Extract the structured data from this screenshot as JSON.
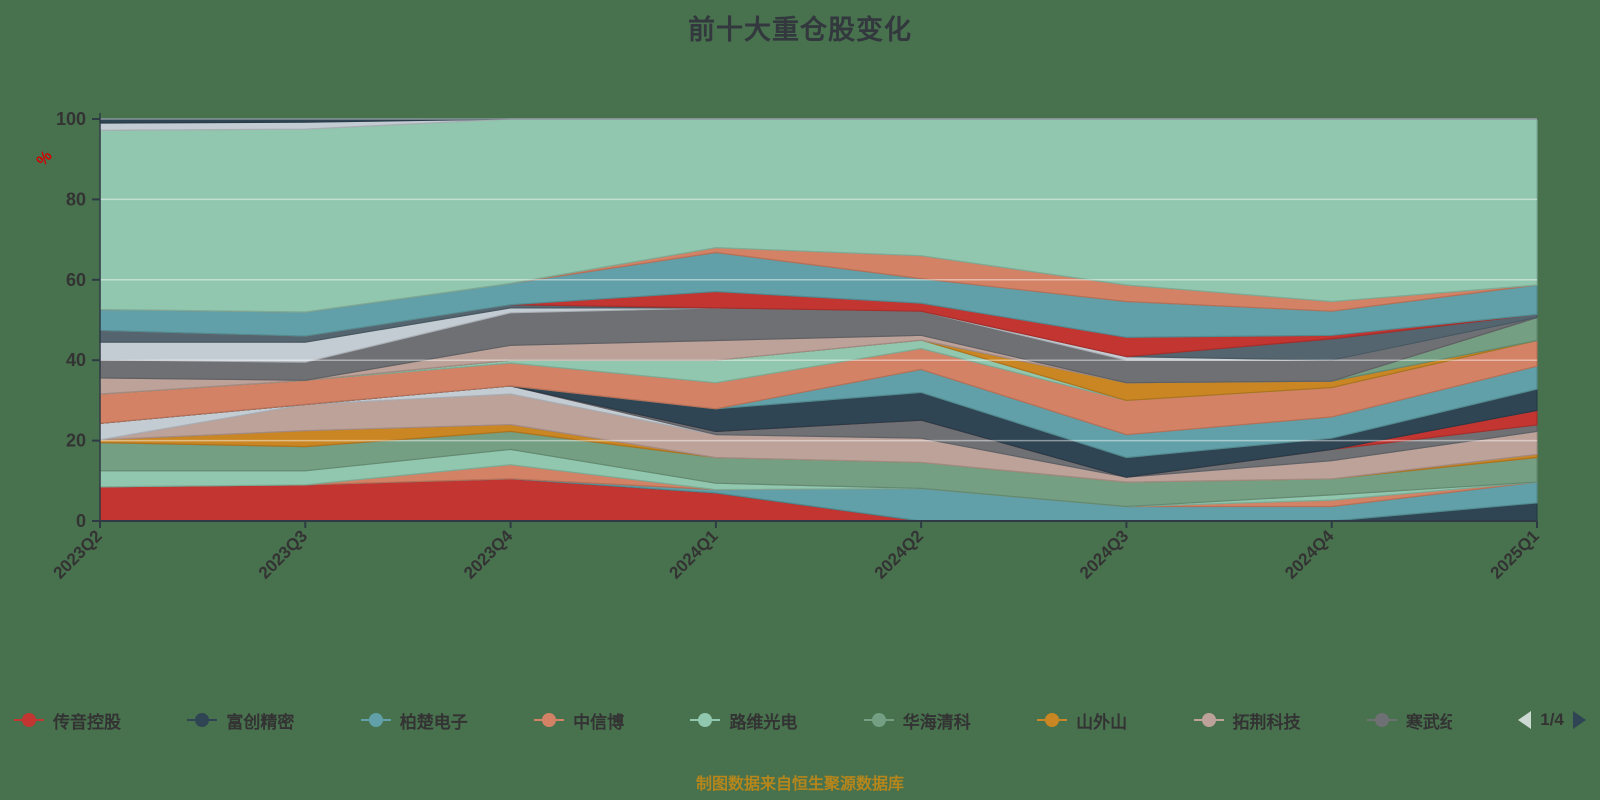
{
  "title": "前十大重仓股变化",
  "y_axis_unit": "%",
  "caption": "制图数据来自恒生聚源数据库",
  "legend": {
    "items": [
      {
        "label": "传音控股",
        "color": "#c23531"
      },
      {
        "label": "富创精密",
        "color": "#2f4554"
      },
      {
        "label": "柏楚电子",
        "color": "#61a0a8"
      },
      {
        "label": "中信博",
        "color": "#d48265"
      },
      {
        "label": "路维光电",
        "color": "#91c7ae"
      },
      {
        "label": "华海清科",
        "color": "#749f83"
      },
      {
        "label": "山外山",
        "color": "#ca8622"
      },
      {
        "label": "拓荆科技",
        "color": "#bda29a"
      },
      {
        "label": "寒武纪",
        "color": "#6e7074",
        "truncated": true
      }
    ],
    "pager": {
      "prev": "left-arrow",
      "text": "1/4",
      "next": "right-arrow"
    }
  },
  "chart_data": {
    "type": "area",
    "stacked": true,
    "grid": true,
    "legend_position": "bottom",
    "categories": [
      "2023Q2",
      "2023Q3",
      "2023Q4",
      "2024Q1",
      "2024Q2",
      "2024Q3",
      "2024Q4",
      "2025Q1"
    ],
    "yticks": [
      0,
      20,
      40,
      60,
      80,
      100
    ],
    "ylim": [
      0,
      100
    ],
    "xlabel": "",
    "ylabel": "%",
    "series": [
      {
        "name": "传音控股",
        "color": "#c23531",
        "values": [
          8.5,
          9,
          10.5,
          7,
          0,
          0,
          0,
          0
        ]
      },
      {
        "name": "",
        "color": "#2f4554",
        "values": [
          0,
          0,
          0,
          0,
          0,
          0,
          0,
          4.5
        ]
      },
      {
        "name": "柏楚电子",
        "color": "#61a0a8",
        "values": [
          0,
          0,
          0,
          0.8,
          8.1,
          3.6,
          3.6,
          5.2
        ]
      },
      {
        "name": "",
        "color": "#d48265",
        "values": [
          0,
          0,
          3.5,
          0,
          0,
          0,
          1.6,
          0
        ]
      },
      {
        "name": "",
        "color": "#91c7ae",
        "values": [
          4,
          3.5,
          3.8,
          1.6,
          0,
          0,
          1.3,
          0
        ]
      },
      {
        "name": "华海清科",
        "color": "#749f83",
        "values": [
          7,
          6,
          4.5,
          6.4,
          6.5,
          6.1,
          4,
          6.1
        ]
      },
      {
        "name": "山外山",
        "color": "#ca8622",
        "values": [
          0.7,
          4,
          1.7,
          0,
          0,
          0,
          0,
          0.8
        ]
      },
      {
        "name": "拓荆科技",
        "color": "#bda29a",
        "values": [
          0,
          6.5,
          7.6,
          5.7,
          6,
          1.2,
          4.5,
          5.7
        ]
      },
      {
        "name": "",
        "color": "#c4ccd3",
        "values": [
          4.1,
          0,
          2,
          0,
          0,
          0,
          0,
          0
        ]
      },
      {
        "name": "",
        "color": "#6e7074",
        "values": [
          0,
          0,
          0,
          0.8,
          4.5,
          0,
          2.8,
          1.6
        ]
      },
      {
        "name": "",
        "color": "#c23531",
        "values": [
          0,
          0,
          0,
          0,
          0,
          0,
          0,
          3.6
        ]
      },
      {
        "name": "富创精密",
        "color": "#2f4554",
        "values": [
          0,
          0,
          0,
          5.6,
          6.9,
          4.9,
          2.8,
          5.3
        ]
      },
      {
        "name": "",
        "color": "#61a0a8",
        "values": [
          0,
          0,
          0,
          0,
          5.7,
          5.7,
          5.3,
          5.7
        ]
      },
      {
        "name": "中信博",
        "color": "#d48265",
        "values": [
          7.3,
          6,
          5.7,
          6.5,
          5.2,
          8.5,
          7.3,
          6.4
        ]
      },
      {
        "name": "",
        "color": "#91c7ae",
        "values": [
          0,
          0,
          0.7,
          5.6,
          2.1,
          0,
          0,
          0
        ]
      },
      {
        "name": "",
        "color": "#ca8622",
        "values": [
          0,
          0,
          0,
          0,
          0,
          4.4,
          1.6,
          0
        ]
      },
      {
        "name": "",
        "color": "#749f83",
        "values": [
          0,
          0,
          0,
          0,
          0,
          0,
          0,
          5.7
        ]
      },
      {
        "name": "",
        "color": "#bda29a",
        "values": [
          4,
          0,
          3.7,
          4.9,
          1.2,
          0,
          0,
          0
        ]
      },
      {
        "name": "寒武纪",
        "color": "#6e7074",
        "values": [
          4.5,
          4.5,
          8.1,
          8.1,
          6,
          5.6,
          5.2,
          0
        ]
      },
      {
        "name": "",
        "color": "#c4ccd3",
        "values": [
          4.4,
          5,
          1.2,
          0,
          0,
          0.9,
          0,
          0
        ]
      },
      {
        "name": "",
        "color": "#546570",
        "values": [
          2.9,
          1.5,
          0.8,
          0,
          0,
          0,
          5.3,
          0.8
        ]
      },
      {
        "name": "",
        "color": "#c23531",
        "values": [
          0,
          0,
          0,
          4.1,
          2,
          4.8,
          0.9,
          0
        ]
      },
      {
        "name": "",
        "color": "#61a0a8",
        "values": [
          5.2,
          6,
          5.3,
          9.7,
          6.1,
          8.9,
          6,
          7.3
        ]
      },
      {
        "name": "",
        "color": "#d48265",
        "values": [
          0,
          0,
          0,
          1.2,
          5.7,
          4.1,
          2.4,
          0
        ]
      },
      {
        "name": "路维光电",
        "color": "#91c7ae",
        "values": [
          44.6,
          45.5,
          40.9,
          32,
          34,
          41.3,
          45.4,
          41.3
        ]
      },
      {
        "name": "",
        "color": "#c4ccd3",
        "values": [
          1.8,
          1.7,
          0,
          0,
          0,
          0,
          0,
          0
        ]
      },
      {
        "name": "",
        "color": "#2f4554",
        "values": [
          1.0,
          0.8,
          0,
          0,
          0,
          0,
          0,
          0
        ]
      }
    ]
  }
}
